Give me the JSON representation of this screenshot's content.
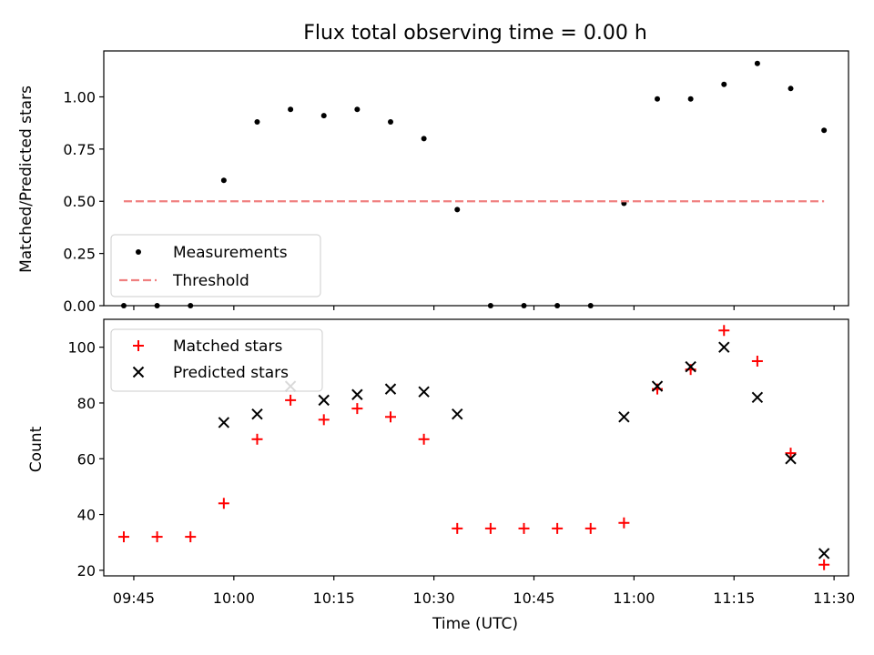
{
  "chart_data": [
    {
      "type": "scatter",
      "title": "Flux total observing time = 0.00 h",
      "ylabel": "Matched/Predicted stars",
      "xlabel": "",
      "ylim": [
        0,
        1.22
      ],
      "yticks": [
        "0.00",
        "0.25",
        "0.50",
        "0.75",
        "1.00"
      ],
      "legend": "lower-left",
      "series": [
        {
          "name": "Measurements",
          "marker": "dot",
          "color": "#000000",
          "points": [
            [
              "09:43:30",
              0.0
            ],
            [
              "09:48:30",
              0.0
            ],
            [
              "09:53:30",
              0.0
            ],
            [
              "09:58:30",
              0.6
            ],
            [
              "10:03:30",
              0.88
            ],
            [
              "10:08:30",
              0.94
            ],
            [
              "10:13:30",
              0.91
            ],
            [
              "10:18:30",
              0.94
            ],
            [
              "10:23:30",
              0.88
            ],
            [
              "10:28:30",
              0.8
            ],
            [
              "10:33:30",
              0.46
            ],
            [
              "10:38:30",
              0.0
            ],
            [
              "10:43:30",
              0.0
            ],
            [
              "10:48:30",
              0.0
            ],
            [
              "10:53:30",
              0.0
            ],
            [
              "10:58:30",
              0.49
            ],
            [
              "11:03:30",
              0.99
            ],
            [
              "11:08:30",
              0.99
            ],
            [
              "11:13:30",
              1.06
            ],
            [
              "11:18:30",
              1.16
            ],
            [
              "11:23:30",
              1.04
            ],
            [
              "11:28:30",
              0.84
            ]
          ]
        },
        {
          "name": "Threshold",
          "style": "dashed",
          "color": "#f08080",
          "points": [
            [
              "09:43:30",
              0.5
            ],
            [
              "11:28:30",
              0.5
            ]
          ]
        }
      ]
    },
    {
      "type": "scatter",
      "title": "",
      "xlabel": "Time (UTC)",
      "ylabel": "Count",
      "ylim": [
        18,
        110
      ],
      "yticks": [
        "20",
        "40",
        "60",
        "80",
        "100"
      ],
      "xticks": [
        "09:45",
        "10:00",
        "10:15",
        "10:30",
        "10:45",
        "11:00",
        "11:15",
        "11:30"
      ],
      "legend": "upper-left",
      "series": [
        {
          "name": "Matched stars",
          "marker": "plus",
          "color": "#ff0000",
          "points": [
            [
              "09:43:30",
              32
            ],
            [
              "09:48:30",
              32
            ],
            [
              "09:53:30",
              32
            ],
            [
              "09:58:30",
              44
            ],
            [
              "10:03:30",
              67
            ],
            [
              "10:08:30",
              81
            ],
            [
              "10:13:30",
              74
            ],
            [
              "10:18:30",
              78
            ],
            [
              "10:23:30",
              75
            ],
            [
              "10:28:30",
              67
            ],
            [
              "10:33:30",
              35
            ],
            [
              "10:38:30",
              35
            ],
            [
              "10:43:30",
              35
            ],
            [
              "10:48:30",
              35
            ],
            [
              "10:53:30",
              35
            ],
            [
              "10:58:30",
              37
            ],
            [
              "11:03:30",
              85
            ],
            [
              "11:08:30",
              92
            ],
            [
              "11:13:30",
              106
            ],
            [
              "11:18:30",
              95
            ],
            [
              "11:23:30",
              62
            ],
            [
              "11:28:30",
              22
            ]
          ]
        },
        {
          "name": "Predicted stars",
          "marker": "x",
          "color": "#000000",
          "points": [
            [
              "09:58:30",
              73
            ],
            [
              "10:03:30",
              76
            ],
            [
              "10:08:30",
              86
            ],
            [
              "10:13:30",
              81
            ],
            [
              "10:18:30",
              83
            ],
            [
              "10:23:30",
              85
            ],
            [
              "10:28:30",
              84
            ],
            [
              "10:33:30",
              76
            ],
            [
              "10:58:30",
              75
            ],
            [
              "11:03:30",
              86
            ],
            [
              "11:08:30",
              93
            ],
            [
              "11:13:30",
              100
            ],
            [
              "11:18:30",
              82
            ],
            [
              "11:23:30",
              60
            ],
            [
              "11:28:30",
              26
            ]
          ]
        }
      ]
    }
  ]
}
